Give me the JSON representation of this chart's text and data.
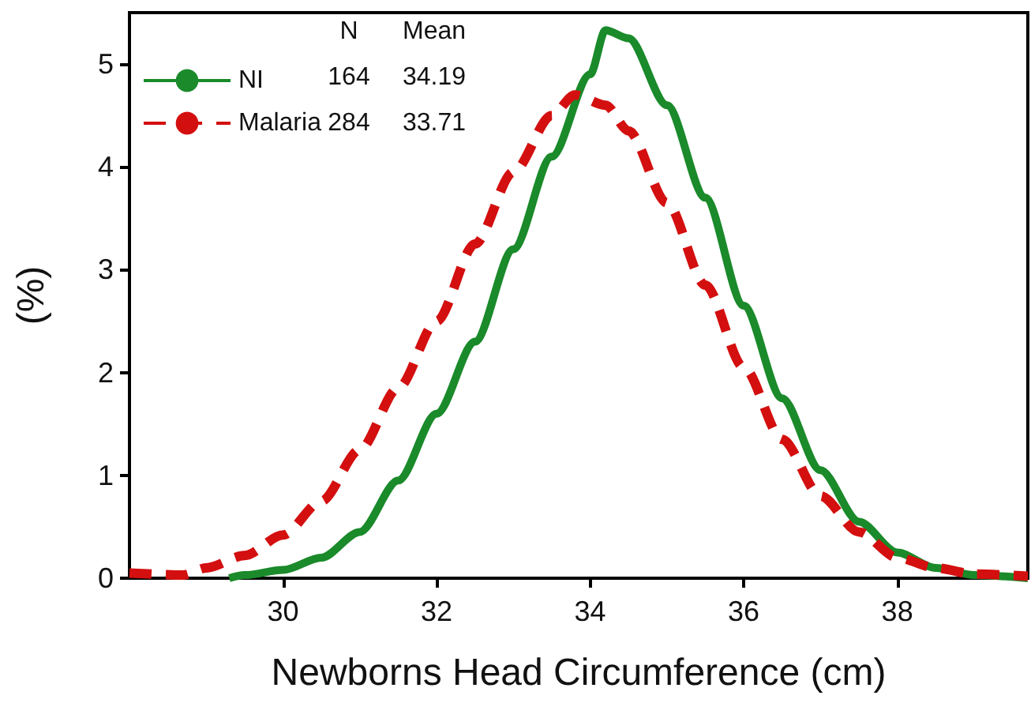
{
  "chart_data": {
    "type": "line",
    "xlabel": "Newborns Head Circumference (cm)",
    "ylabel": "(%)",
    "xlim": [
      28,
      39.7
    ],
    "xticks": [
      30,
      32,
      34,
      36,
      38
    ],
    "ylim": [
      0,
      5.5
    ],
    "yticks": [
      0,
      1,
      2,
      3,
      4,
      5
    ],
    "grid": false,
    "legend": "top left",
    "marker": "none",
    "annotations": [
      "N",
      "Mean",
      "164",
      "34.19",
      "284",
      "33.71"
    ],
    "series": [
      {
        "name": "NI",
        "color": "#1a8a2a",
        "line_style": "solid",
        "x": [
          29.3,
          29.5,
          30,
          30.5,
          31,
          31.5,
          32,
          32.5,
          33,
          33.5,
          34,
          34.2,
          34.5,
          35,
          35.5,
          36,
          36.5,
          37,
          37.5,
          38,
          38.5,
          39,
          39.7
        ],
        "values": [
          0,
          0.03,
          0.08,
          0.2,
          0.45,
          0.95,
          1.6,
          2.3,
          3.2,
          4.1,
          4.9,
          5.33,
          5.25,
          4.6,
          3.7,
          2.65,
          1.75,
          1.05,
          0.55,
          0.25,
          0.1,
          0.03,
          0
        ]
      },
      {
        "name": "Malaria",
        "color": "#d40f0f",
        "line_style": "dashed",
        "x": [
          28,
          28.7,
          29,
          29.5,
          30,
          30.5,
          31,
          31.5,
          32,
          32.5,
          33,
          33.5,
          33.8,
          34.2,
          34.5,
          35,
          35.5,
          36,
          36.5,
          37,
          37.5,
          38,
          38.5,
          39,
          39.7
        ],
        "values": [
          0.05,
          0.03,
          0.1,
          0.22,
          0.42,
          0.75,
          1.25,
          1.85,
          2.5,
          3.25,
          3.95,
          4.5,
          4.7,
          4.6,
          4.35,
          3.65,
          2.85,
          2.05,
          1.35,
          0.8,
          0.45,
          0.2,
          0.1,
          0.04,
          0.02
        ]
      }
    ]
  }
}
